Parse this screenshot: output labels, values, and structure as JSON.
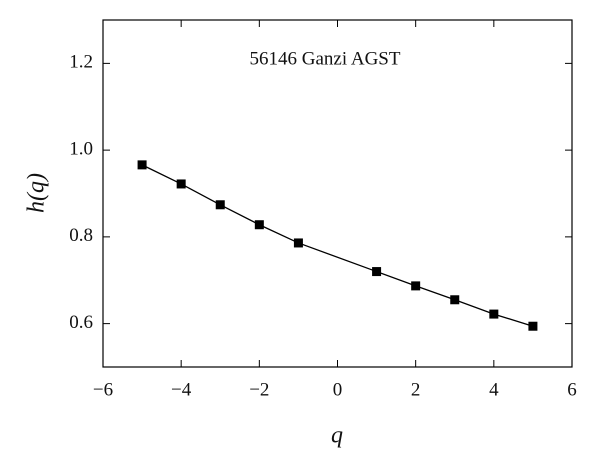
{
  "chart_data": {
    "type": "line",
    "title": "56146 Ganzi AGST",
    "x_label": "q",
    "y_label": "h(q)",
    "x": [
      -5,
      -4,
      -3,
      -2,
      -1,
      1,
      2,
      3,
      4,
      5
    ],
    "series": [
      {
        "name": "h(q)",
        "color": "#000000",
        "values": [
          0.966,
          0.922,
          0.874,
          0.828,
          0.786,
          0.72,
          0.687,
          0.655,
          0.622,
          0.594
        ]
      }
    ],
    "xlim": [
      -6,
      6
    ],
    "xticks": [
      {
        "value": -6,
        "label": "−6"
      },
      {
        "value": -4,
        "label": "−4"
      },
      {
        "value": -2,
        "label": "−2"
      },
      0,
      2,
      4,
      6
    ],
    "ylim": [
      0.5,
      1.3
    ],
    "yticks": [
      0.6,
      0.8,
      {
        "value": 1,
        "label": "1.0"
      },
      1.2
    ],
    "grid": false
  }
}
